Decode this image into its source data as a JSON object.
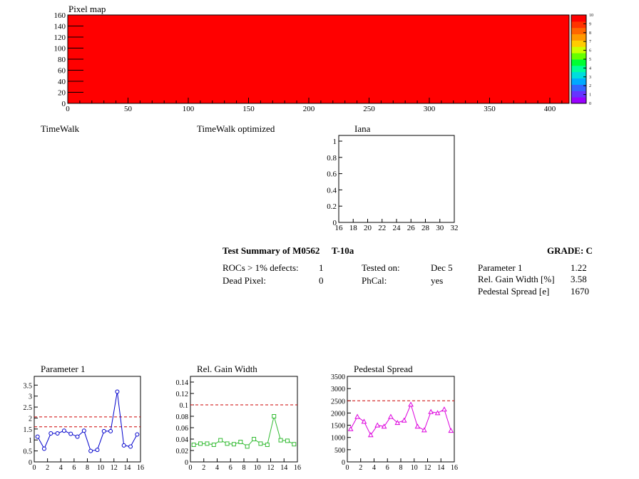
{
  "pixel_map": {
    "title": "Pixel map",
    "x_ticks": [
      "0",
      "50",
      "100",
      "150",
      "200",
      "250",
      "300",
      "350",
      "400"
    ],
    "y_ticks": [
      "0",
      "20",
      "40",
      "60",
      "80",
      "100",
      "120",
      "140",
      "160"
    ],
    "xlim": [
      0,
      416
    ],
    "ylim": [
      0,
      160
    ],
    "fill_color": "#ff0000",
    "palette_ticks": [
      "0",
      "1",
      "2",
      "3",
      "4",
      "5",
      "6",
      "7",
      "8",
      "9",
      "10"
    ],
    "palette_colors": [
      "#9900ff",
      "#6633ff",
      "#3366ff",
      "#00aaff",
      "#00dddd",
      "#00ff99",
      "#00ff33",
      "#66ff00",
      "#ccff00",
      "#ffcc00",
      "#ff9900",
      "#ff6600",
      "#ff3300",
      "#ff0000"
    ]
  },
  "timewalk": {
    "title": "TimeWalk"
  },
  "timewalk_opt": {
    "title": "TimeWalk optimized"
  },
  "iana": {
    "title": "Iana",
    "x_ticks": [
      "16",
      "18",
      "20",
      "22",
      "24",
      "26",
      "28",
      "30",
      "32"
    ],
    "y_ticks": [
      "0",
      "0.2",
      "0.4",
      "0.6",
      "0.8",
      "1"
    ]
  },
  "summary": {
    "title": "Test Summary of M0562",
    "test": "T-10a",
    "grade": "GRADE:  C",
    "rocs_label": "ROCs > 1% defects:",
    "rocs_value": "1",
    "dead_label": "Dead Pixel:",
    "dead_value": "0",
    "tested_label": "Tested on:",
    "tested_value": "Dec 5",
    "phcal_label": "PhCal:",
    "phcal_value": "yes",
    "p1_label": "Parameter 1",
    "p1_value": "1.22",
    "rgw_label": "Rel. Gain Width [%]",
    "rgw_value": "3.58",
    "ped_label": "Pedestal Spread [e]",
    "ped_value": "1670"
  },
  "chart_data": [
    {
      "type": "line",
      "title": "Parameter 1",
      "color": "#0000cc",
      "marker": "circle",
      "x": [
        0.5,
        1.5,
        2.5,
        3.5,
        4.5,
        5.5,
        6.5,
        7.5,
        8.5,
        9.5,
        10.5,
        11.5,
        12.5,
        13.5,
        14.5,
        15.5
      ],
      "values": [
        1.15,
        0.6,
        1.3,
        1.3,
        1.42,
        1.28,
        1.15,
        1.42,
        0.5,
        0.55,
        1.4,
        1.4,
        3.2,
        0.75,
        0.7,
        1.25
      ],
      "xlim": [
        0,
        16
      ],
      "ylim": [
        0,
        3.9
      ],
      "x_ticks": [
        "0",
        "2",
        "4",
        "6",
        "8",
        "10",
        "12",
        "14",
        "16"
      ],
      "y_ticks": [
        "0",
        "0.5",
        "1",
        "1.5",
        "2",
        "2.5",
        "3",
        "3.5"
      ],
      "ref_lines": [
        1.6,
        2.05
      ]
    },
    {
      "type": "line",
      "title": "Rel. Gain Width",
      "color": "#33bb33",
      "marker": "square",
      "x": [
        0.5,
        1.5,
        2.5,
        3.5,
        4.5,
        5.5,
        6.5,
        7.5,
        8.5,
        9.5,
        10.5,
        11.5,
        12.5,
        13.5,
        14.5,
        15.5
      ],
      "values": [
        0.03,
        0.032,
        0.032,
        0.03,
        0.038,
        0.032,
        0.031,
        0.035,
        0.027,
        0.04,
        0.032,
        0.03,
        0.08,
        0.038,
        0.037,
        0.031
      ],
      "xlim": [
        0,
        16
      ],
      "ylim": [
        0,
        0.15
      ],
      "x_ticks": [
        "0",
        "2",
        "4",
        "6",
        "8",
        "10",
        "12",
        "14",
        "16"
      ],
      "y_ticks": [
        "0",
        "0.02",
        "0.04",
        "0.06",
        "0.08",
        "0.1",
        "0.12",
        "0.14"
      ],
      "ref_lines": [
        0.1
      ]
    },
    {
      "type": "line",
      "title": "Pedestal Spread",
      "color": "#dd00dd",
      "marker": "triangle",
      "x": [
        0.5,
        1.5,
        2.5,
        3.5,
        4.5,
        5.5,
        6.5,
        7.5,
        8.5,
        9.5,
        10.5,
        11.5,
        12.5,
        13.5,
        14.5,
        15.5
      ],
      "values": [
        1350,
        1850,
        1650,
        1100,
        1500,
        1450,
        1850,
        1600,
        1700,
        2350,
        1450,
        1300,
        2050,
        2000,
        2150,
        1280
      ],
      "xlim": [
        0,
        16
      ],
      "ylim": [
        0,
        3500
      ],
      "x_ticks": [
        "0",
        "2",
        "4",
        "6",
        "8",
        "10",
        "12",
        "14",
        "16"
      ],
      "y_ticks": [
        "0",
        "500",
        "1000",
        "1500",
        "2000",
        "2500",
        "3000",
        "3500"
      ],
      "ref_lines": [
        2500
      ]
    }
  ]
}
